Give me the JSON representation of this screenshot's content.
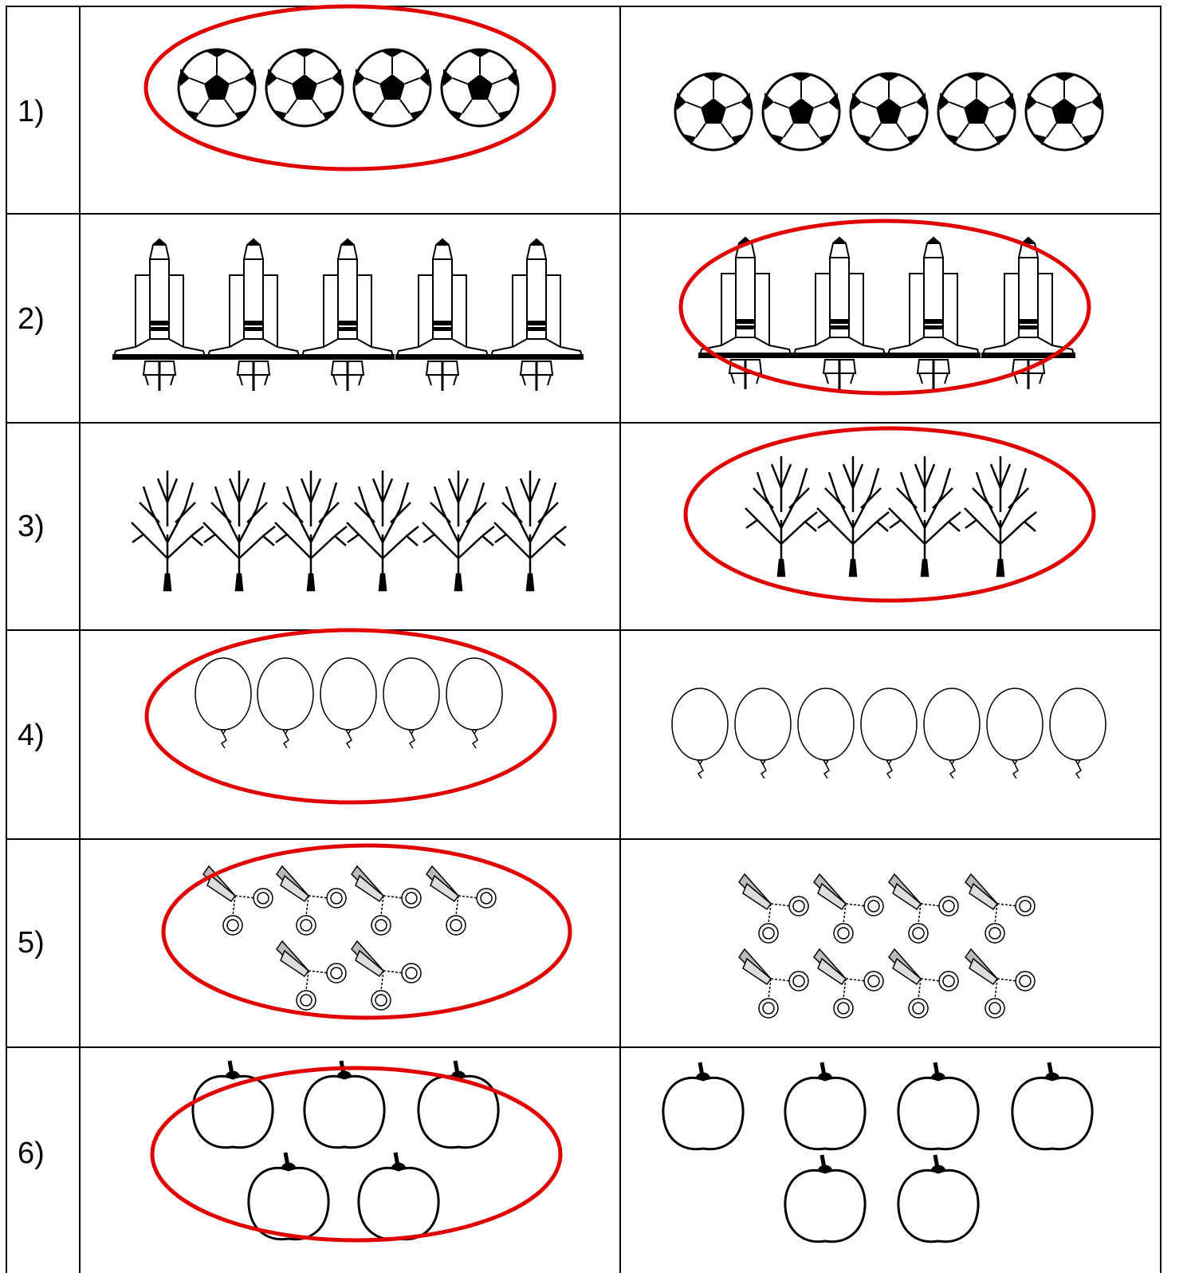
{
  "rows": [
    {
      "label": "1)"
    },
    {
      "label": "2)"
    },
    {
      "label": "3)"
    },
    {
      "label": "4)"
    },
    {
      "label": "5)"
    },
    {
      "label": "6)"
    }
  ]
}
